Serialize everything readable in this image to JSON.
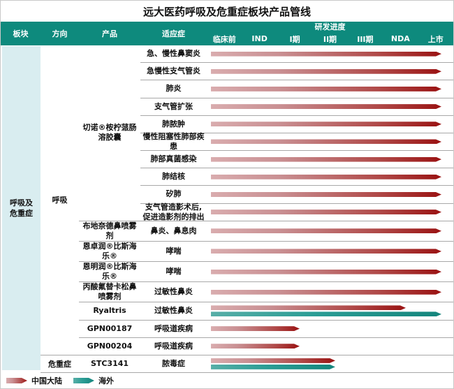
{
  "title": "远大医药呼吸及危重症板块产品管线",
  "header": {
    "sector": "板块",
    "direction": "方向",
    "product": "产品",
    "indication": "适应症",
    "progress_title": "研发进度",
    "phases": [
      "临床前",
      "IND",
      "I期",
      "II期",
      "III期",
      "NDA",
      "上市"
    ]
  },
  "sector_label": "呼吸及危重症",
  "chart_data": {
    "type": "bar",
    "title": "远大医药呼吸及危重症板块产品管线",
    "x_axis_phases": [
      "临床前",
      "IND",
      "I期",
      "II期",
      "III期",
      "NDA",
      "上市"
    ],
    "legend_position": "bottom-left",
    "groups": [
      {
        "direction": "呼吸",
        "products": [
          {
            "name": "切诺®桉柠蒎肠溶胶囊",
            "rows": [
              {
                "indication": "急、慢性鼻窦炎",
                "bars": [
                  {
                    "market": "中国大陆",
                    "phase": "上市"
                  }
                ]
              },
              {
                "indication": "急慢性支气管炎",
                "bars": [
                  {
                    "market": "中国大陆",
                    "phase": "上市"
                  }
                ]
              },
              {
                "indication": "肺炎",
                "bars": [
                  {
                    "market": "中国大陆",
                    "phase": "上市"
                  }
                ]
              },
              {
                "indication": "支气管扩张",
                "bars": [
                  {
                    "market": "中国大陆",
                    "phase": "上市"
                  }
                ]
              },
              {
                "indication": "肺脓肿",
                "bars": [
                  {
                    "market": "中国大陆",
                    "phase": "上市"
                  }
                ]
              },
              {
                "indication": "慢性阻塞性肺部疾患",
                "bars": [
                  {
                    "market": "中国大陆",
                    "phase": "上市"
                  }
                ]
              },
              {
                "indication": "肺部真菌感染",
                "bars": [
                  {
                    "market": "中国大陆",
                    "phase": "上市"
                  }
                ]
              },
              {
                "indication": "肺结核",
                "bars": [
                  {
                    "market": "中国大陆",
                    "phase": "上市"
                  }
                ]
              },
              {
                "indication": "矽肺",
                "bars": [
                  {
                    "market": "中国大陆",
                    "phase": "上市"
                  }
                ]
              },
              {
                "indication": "支气管造影术后,促进造影剂的排出",
                "bars": [
                  {
                    "market": "中国大陆",
                    "phase": "上市"
                  }
                ]
              }
            ]
          },
          {
            "name": "布地奈德鼻喷雾剂",
            "rows": [
              {
                "indication": "鼻炎、鼻息肉",
                "bars": [
                  {
                    "market": "中国大陆",
                    "phase": "上市"
                  }
                ]
              }
            ]
          },
          {
            "name": "恩卓润®比斯海乐®",
            "rows": [
              {
                "indication": "哮喘",
                "bars": [
                  {
                    "market": "中国大陆",
                    "phase": "上市"
                  }
                ]
              }
            ]
          },
          {
            "name": "恩明润®比斯海乐®",
            "rows": [
              {
                "indication": "哮喘",
                "bars": [
                  {
                    "market": "中国大陆",
                    "phase": "上市"
                  }
                ]
              }
            ]
          },
          {
            "name": "丙酸氟替卡松鼻喷雾剂",
            "rows": [
              {
                "indication": "过敏性鼻炎",
                "bars": [
                  {
                    "market": "中国大陆",
                    "phase": "上市"
                  }
                ]
              }
            ]
          },
          {
            "name": "Ryaltris",
            "rows": [
              {
                "indication": "过敏性鼻炎",
                "bars": [
                  {
                    "market": "中国大陆",
                    "phase": "NDA"
                  },
                  {
                    "market": "海外",
                    "phase": "上市"
                  }
                ]
              }
            ]
          },
          {
            "name": "GPN00187",
            "rows": [
              {
                "indication": "呼吸道疾病",
                "bars": [
                  {
                    "market": "中国大陆",
                    "phase": "I期"
                  }
                ]
              }
            ]
          },
          {
            "name": "GPN00204",
            "rows": [
              {
                "indication": "呼吸道疾病",
                "bars": [
                  {
                    "market": "中国大陆",
                    "phase": "I期"
                  }
                ]
              }
            ]
          }
        ]
      },
      {
        "direction": "危重症",
        "products": [
          {
            "name": "STC3141",
            "rows": [
              {
                "indication": "脓毒症",
                "bars": [
                  {
                    "market": "中国大陆",
                    "phase": "II期"
                  },
                  {
                    "market": "海外",
                    "phase": "II期"
                  }
                ]
              }
            ]
          }
        ]
      }
    ]
  },
  "legend": {
    "cn_label": "中国大陆",
    "overseas_label": "海外"
  },
  "colors": {
    "header_teal": "#0e8a7d",
    "sector_cell_bg": "#d9edf0",
    "cn_bar_start": "#d9acae",
    "cn_bar_end": "#9a1212",
    "overseas_bar_start": "#57aea7",
    "overseas_bar_end": "#15857c",
    "separator": "#a8a8a8"
  }
}
